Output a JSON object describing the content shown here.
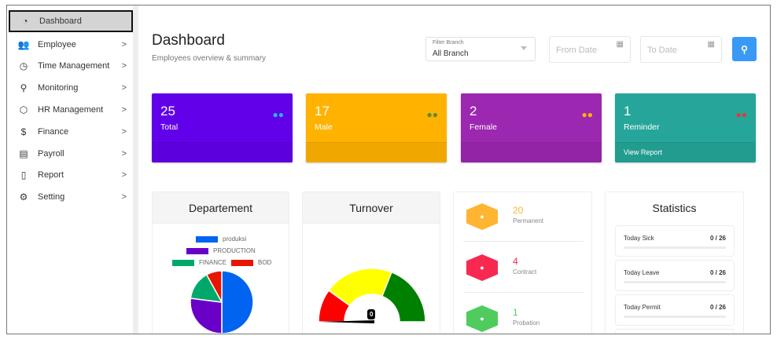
{
  "sidebar": {
    "items": [
      {
        "label": "Dashboard",
        "icon": "gauge-icon",
        "glyph": "◔"
      },
      {
        "label": "Employee",
        "icon": "users-icon",
        "glyph": "👥"
      },
      {
        "label": "Time Management",
        "icon": "clock-icon",
        "glyph": "◷"
      },
      {
        "label": "Monitoring",
        "icon": "map-pin-icon",
        "glyph": "⚲"
      },
      {
        "label": "HR Management",
        "icon": "box-icon",
        "glyph": "⬡"
      },
      {
        "label": "Finance",
        "icon": "dollar-icon",
        "glyph": "$"
      },
      {
        "label": "Payroll",
        "icon": "book-icon",
        "glyph": "▤"
      },
      {
        "label": "Report",
        "icon": "file-icon",
        "glyph": "▯"
      },
      {
        "label": "Setting",
        "icon": "gear-icon",
        "glyph": "⚙"
      }
    ],
    "chevron": ">"
  },
  "header": {
    "title": "Dashboard",
    "subtitle": "Employees overview & summary",
    "filter": {
      "caption": "Filter Branch",
      "value": "All Branch"
    },
    "from_placeholder": "From Date",
    "to_placeholder": "To Date"
  },
  "cards": [
    {
      "value": "25",
      "label": "Total",
      "color": "#6200ea",
      "icon_color": "#29b6f6",
      "footer": ""
    },
    {
      "value": "17",
      "label": "Male",
      "color": "#ffb300",
      "icon_color": "#558b2f",
      "footer": ""
    },
    {
      "value": "2",
      "label": "Female",
      "color": "#9c27b0",
      "icon_color": "#ffb300",
      "footer": ""
    },
    {
      "value": "1",
      "label": "Reminder",
      "color": "#26a69a",
      "icon_color": "#e53935",
      "footer": "View Report"
    }
  ],
  "department": {
    "title": "Departement"
  },
  "turnover": {
    "title": "Turnover",
    "value": "0"
  },
  "chart_data": [
    {
      "type": "pie",
      "title": "Departement",
      "categories": [
        "produksi",
        "PRODUCTION",
        "FINANCE",
        "BOD"
      ],
      "values": [
        50,
        27,
        15,
        8
      ],
      "colors": [
        "#0064f0",
        "#6a00c8",
        "#00a86b",
        "#e81500"
      ]
    },
    {
      "type": "gauge",
      "title": "Turnover",
      "value": 0,
      "bands": [
        {
          "from": 0,
          "to": 20,
          "color": "#ff0000"
        },
        {
          "from": 20,
          "to": 62,
          "color": "#ffff00"
        },
        {
          "from": 62,
          "to": 100,
          "color": "#008000"
        }
      ]
    }
  ],
  "employment": [
    {
      "value": "20",
      "label": "Permanent",
      "color": "#ffb531"
    },
    {
      "value": "4",
      "label": "Contract",
      "color": "#f72951"
    },
    {
      "value": "1",
      "label": "Probation",
      "color": "#4fcc5d"
    }
  ],
  "statistics": {
    "title": "Statistics",
    "items": [
      {
        "label": "Today Sick",
        "value": "0 / 26",
        "fraction": 0
      },
      {
        "label": "Today Leave",
        "value": "0 / 26",
        "fraction": 0
      },
      {
        "label": "Today Permit",
        "value": "0 / 26",
        "fraction": 0
      }
    ]
  }
}
